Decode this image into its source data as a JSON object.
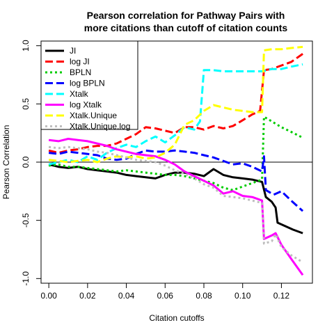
{
  "chart_data": {
    "type": "line",
    "title_lines": [
      "Pearson correlation for Pathway Pairs with",
      "more citations than cutoff of citation counts"
    ],
    "xlabel": "Citation cutoffs",
    "ylabel": "Pearson Correlation",
    "xlim": [
      -0.004,
      0.136
    ],
    "ylim": [
      -1.04,
      1.04
    ],
    "x_ticks": [
      0.0,
      0.02,
      0.04,
      0.06,
      0.08,
      0.1,
      0.12
    ],
    "x_tick_labels": [
      "0.00",
      "0.02",
      "0.04",
      "0.06",
      "0.08",
      "0.10",
      "0.12"
    ],
    "y_ticks": [
      -1.0,
      -0.5,
      0.0,
      0.5,
      1.0
    ],
    "y_tick_labels": [
      "-1.0",
      "-0.5",
      "0.0",
      "0.5",
      "1.0"
    ],
    "reference_line_y": 0.0,
    "legend_position": "top-left",
    "series": [
      {
        "name": "JI",
        "color": "#000000",
        "dash": "solid",
        "points": [
          [
            0.0,
            -0.02
          ],
          [
            0.005,
            -0.04
          ],
          [
            0.01,
            -0.05
          ],
          [
            0.015,
            -0.04
          ],
          [
            0.02,
            -0.06
          ],
          [
            0.025,
            -0.07
          ],
          [
            0.03,
            -0.08
          ],
          [
            0.035,
            -0.09
          ],
          [
            0.04,
            -0.11
          ],
          [
            0.045,
            -0.12
          ],
          [
            0.05,
            -0.13
          ],
          [
            0.055,
            -0.14
          ],
          [
            0.06,
            -0.11
          ],
          [
            0.065,
            -0.09
          ],
          [
            0.07,
            -0.09
          ],
          [
            0.075,
            -0.1
          ],
          [
            0.08,
            -0.12
          ],
          [
            0.085,
            -0.06
          ],
          [
            0.09,
            -0.11
          ],
          [
            0.095,
            -0.13
          ],
          [
            0.1,
            -0.14
          ],
          [
            0.105,
            -0.15
          ],
          [
            0.11,
            -0.17
          ],
          [
            0.112,
            -0.3
          ],
          [
            0.115,
            -0.34
          ],
          [
            0.117,
            -0.39
          ],
          [
            0.118,
            -0.52
          ],
          [
            0.122,
            -0.55
          ],
          [
            0.126,
            -0.58
          ],
          [
            0.131,
            -0.61
          ]
        ]
      },
      {
        "name": "log JI",
        "color": "#ff0000",
        "dash": "dashed",
        "points": [
          [
            0.0,
            0.1
          ],
          [
            0.005,
            0.08
          ],
          [
            0.01,
            0.1
          ],
          [
            0.015,
            0.11
          ],
          [
            0.02,
            0.13
          ],
          [
            0.025,
            0.14
          ],
          [
            0.03,
            0.14
          ],
          [
            0.035,
            0.16
          ],
          [
            0.04,
            0.2
          ],
          [
            0.045,
            0.24
          ],
          [
            0.05,
            0.3
          ],
          [
            0.055,
            0.29
          ],
          [
            0.06,
            0.27
          ],
          [
            0.065,
            0.25
          ],
          [
            0.07,
            0.3
          ],
          [
            0.075,
            0.3
          ],
          [
            0.08,
            0.28
          ],
          [
            0.085,
            0.31
          ],
          [
            0.09,
            0.29
          ],
          [
            0.095,
            0.31
          ],
          [
            0.1,
            0.36
          ],
          [
            0.105,
            0.41
          ],
          [
            0.109,
            0.44
          ],
          [
            0.111,
            0.79
          ],
          [
            0.115,
            0.8
          ],
          [
            0.12,
            0.83
          ],
          [
            0.125,
            0.86
          ],
          [
            0.131,
            0.93
          ]
        ]
      },
      {
        "name": "BPLN",
        "color": "#00cc00",
        "dash": "dotted",
        "points": [
          [
            0.0,
            -0.03
          ],
          [
            0.005,
            -0.02
          ],
          [
            0.01,
            -0.04
          ],
          [
            0.015,
            -0.04
          ],
          [
            0.02,
            -0.05
          ],
          [
            0.025,
            -0.06
          ],
          [
            0.03,
            -0.07
          ],
          [
            0.035,
            -0.08
          ],
          [
            0.04,
            -0.07
          ],
          [
            0.045,
            -0.08
          ],
          [
            0.05,
            -0.09
          ],
          [
            0.055,
            -0.1
          ],
          [
            0.06,
            -0.11
          ],
          [
            0.065,
            -0.11
          ],
          [
            0.07,
            -0.12
          ],
          [
            0.075,
            -0.14
          ],
          [
            0.08,
            -0.16
          ],
          [
            0.085,
            -0.18
          ],
          [
            0.09,
            -0.22
          ],
          [
            0.095,
            -0.24
          ],
          [
            0.1,
            -0.21
          ],
          [
            0.105,
            -0.18
          ],
          [
            0.11,
            -0.15
          ],
          [
            0.111,
            0.39
          ],
          [
            0.115,
            0.35
          ],
          [
            0.12,
            0.3
          ],
          [
            0.125,
            0.26
          ],
          [
            0.131,
            0.21
          ]
        ]
      },
      {
        "name": "log BPLN",
        "color": "#0000ff",
        "dash": "dashed",
        "points": [
          [
            0.0,
            0.08
          ],
          [
            0.005,
            0.07
          ],
          [
            0.01,
            0.09
          ],
          [
            0.015,
            0.08
          ],
          [
            0.02,
            0.07
          ],
          [
            0.025,
            0.06
          ],
          [
            0.03,
            0.03
          ],
          [
            0.035,
            0.02
          ],
          [
            0.04,
            0.03
          ],
          [
            0.045,
            0.07
          ],
          [
            0.05,
            0.1
          ],
          [
            0.055,
            0.09
          ],
          [
            0.06,
            0.09
          ],
          [
            0.065,
            0.1
          ],
          [
            0.07,
            0.09
          ],
          [
            0.075,
            0.08
          ],
          [
            0.08,
            0.06
          ],
          [
            0.085,
            0.04
          ],
          [
            0.09,
            0.01
          ],
          [
            0.095,
            -0.02
          ],
          [
            0.1,
            -0.01
          ],
          [
            0.105,
            -0.04
          ],
          [
            0.11,
            -0.08
          ],
          [
            0.111,
            0.05
          ],
          [
            0.112,
            -0.24
          ],
          [
            0.116,
            -0.28
          ],
          [
            0.12,
            -0.25
          ],
          [
            0.125,
            -0.33
          ],
          [
            0.131,
            -0.42
          ]
        ]
      },
      {
        "name": "Xtalk",
        "color": "#00ffff",
        "dash": "dashed",
        "points": [
          [
            0.0,
            -0.02
          ],
          [
            0.005,
            0.0
          ],
          [
            0.01,
            0.02
          ],
          [
            0.015,
            0.0
          ],
          [
            0.02,
            0.05
          ],
          [
            0.025,
            0.02
          ],
          [
            0.03,
            0.08
          ],
          [
            0.035,
            0.12
          ],
          [
            0.04,
            0.15
          ],
          [
            0.045,
            0.13
          ],
          [
            0.05,
            0.18
          ],
          [
            0.055,
            0.22
          ],
          [
            0.06,
            0.17
          ],
          [
            0.065,
            0.23
          ],
          [
            0.07,
            0.3
          ],
          [
            0.075,
            0.28
          ],
          [
            0.078,
            0.35
          ],
          [
            0.08,
            0.79
          ],
          [
            0.085,
            0.79
          ],
          [
            0.09,
            0.78
          ],
          [
            0.095,
            0.78
          ],
          [
            0.1,
            0.78
          ],
          [
            0.105,
            0.78
          ],
          [
            0.11,
            0.78
          ],
          [
            0.115,
            0.8
          ],
          [
            0.12,
            0.8
          ],
          [
            0.125,
            0.82
          ],
          [
            0.131,
            0.84
          ]
        ]
      },
      {
        "name": "log Xtalk",
        "color": "#ff00ff",
        "dash": "solid",
        "points": [
          [
            0.0,
            0.19
          ],
          [
            0.005,
            0.18
          ],
          [
            0.01,
            0.2
          ],
          [
            0.015,
            0.19
          ],
          [
            0.02,
            0.18
          ],
          [
            0.025,
            0.16
          ],
          [
            0.03,
            0.14
          ],
          [
            0.035,
            0.11
          ],
          [
            0.04,
            0.09
          ],
          [
            0.045,
            0.07
          ],
          [
            0.05,
            0.06
          ],
          [
            0.055,
            0.05
          ],
          [
            0.06,
            0.02
          ],
          [
            0.065,
            -0.02
          ],
          [
            0.07,
            -0.08
          ],
          [
            0.075,
            -0.12
          ],
          [
            0.08,
            -0.16
          ],
          [
            0.085,
            -0.2
          ],
          [
            0.09,
            -0.27
          ],
          [
            0.095,
            -0.25
          ],
          [
            0.1,
            -0.29
          ],
          [
            0.105,
            -0.3
          ],
          [
            0.11,
            -0.33
          ],
          [
            0.111,
            -0.66
          ],
          [
            0.115,
            -0.63
          ],
          [
            0.117,
            -0.61
          ],
          [
            0.12,
            -0.71
          ],
          [
            0.125,
            -0.83
          ],
          [
            0.131,
            -0.97
          ]
        ]
      },
      {
        "name": "Xtalk.Unique",
        "color": "#ffff00",
        "dash": "dashed",
        "points": [
          [
            0.0,
            0.02
          ],
          [
            0.005,
            0.01
          ],
          [
            0.01,
            0.0
          ],
          [
            0.015,
            0.01
          ],
          [
            0.02,
            0.02
          ],
          [
            0.025,
            0.0
          ],
          [
            0.03,
            0.03
          ],
          [
            0.035,
            0.05
          ],
          [
            0.04,
            0.04
          ],
          [
            0.045,
            0.05
          ],
          [
            0.05,
            0.03
          ],
          [
            0.055,
            0.04
          ],
          [
            0.06,
            0.08
          ],
          [
            0.065,
            0.15
          ],
          [
            0.07,
            0.32
          ],
          [
            0.075,
            0.36
          ],
          [
            0.08,
            0.44
          ],
          [
            0.085,
            0.49
          ],
          [
            0.09,
            0.47
          ],
          [
            0.095,
            0.45
          ],
          [
            0.1,
            0.44
          ],
          [
            0.105,
            0.43
          ],
          [
            0.11,
            0.43
          ],
          [
            0.111,
            0.96
          ],
          [
            0.115,
            0.97
          ],
          [
            0.12,
            0.97
          ],
          [
            0.125,
            0.98
          ],
          [
            0.131,
            0.99
          ]
        ]
      },
      {
        "name": "Xtalk.Unique.log",
        "color": "#bebebe",
        "dash": "dotted",
        "points": [
          [
            0.0,
            0.13
          ],
          [
            0.005,
            0.12
          ],
          [
            0.01,
            0.13
          ],
          [
            0.015,
            0.12
          ],
          [
            0.02,
            0.11
          ],
          [
            0.025,
            0.09
          ],
          [
            0.03,
            0.08
          ],
          [
            0.035,
            0.06
          ],
          [
            0.04,
            0.04
          ],
          [
            0.045,
            0.02
          ],
          [
            0.05,
            0.01
          ],
          [
            0.055,
            0.0
          ],
          [
            0.06,
            -0.03
          ],
          [
            0.065,
            -0.07
          ],
          [
            0.07,
            -0.1
          ],
          [
            0.075,
            -0.14
          ],
          [
            0.08,
            -0.19
          ],
          [
            0.085,
            -0.22
          ],
          [
            0.09,
            -0.29
          ],
          [
            0.095,
            -0.3
          ],
          [
            0.1,
            -0.31
          ],
          [
            0.105,
            -0.33
          ],
          [
            0.11,
            -0.35
          ],
          [
            0.111,
            -0.7
          ],
          [
            0.115,
            -0.68
          ],
          [
            0.117,
            -0.62
          ],
          [
            0.12,
            -0.73
          ],
          [
            0.125,
            -0.8
          ],
          [
            0.131,
            -0.86
          ]
        ]
      }
    ]
  }
}
